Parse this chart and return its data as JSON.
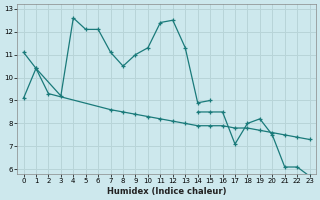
{
  "xlabel": "Humidex (Indice chaleur)",
  "bg_color": "#cde8ed",
  "grid_color": "#b8d4d8",
  "line_color": "#1a7a7a",
  "xlim": [
    -0.5,
    23.5
  ],
  "ylim": [
    5.8,
    13.2
  ],
  "xticks": [
    0,
    1,
    2,
    3,
    4,
    5,
    6,
    7,
    8,
    9,
    10,
    11,
    12,
    13,
    14,
    15,
    16,
    17,
    18,
    19,
    20,
    21,
    22,
    23
  ],
  "yticks": [
    6,
    7,
    8,
    9,
    10,
    11,
    12,
    13
  ],
  "series1": {
    "x": [
      0,
      1,
      3,
      4,
      5,
      6,
      7,
      8,
      9,
      10,
      11,
      12,
      13,
      14,
      15
    ],
    "y": [
      11.1,
      10.4,
      9.2,
      12.6,
      12.1,
      12.1,
      11.1,
      10.5,
      11.0,
      11.3,
      12.4,
      12.5,
      11.3,
      8.9,
      9.0
    ]
  },
  "series2": {
    "x": [
      0,
      1,
      2,
      7,
      8,
      9,
      10,
      11,
      12,
      13,
      14,
      15,
      16,
      17,
      18,
      19,
      20,
      21,
      22,
      23
    ],
    "y": [
      9.1,
      10.4,
      9.3,
      8.6,
      8.5,
      8.4,
      8.3,
      8.2,
      8.1,
      8.0,
      7.9,
      7.9,
      7.9,
      7.8,
      7.8,
      7.7,
      7.6,
      7.5,
      7.4,
      7.3
    ]
  },
  "series3": {
    "x": [
      14,
      15,
      16,
      17,
      18,
      19,
      20,
      21,
      22,
      23
    ],
    "y": [
      8.5,
      8.5,
      8.5,
      7.1,
      8.0,
      8.2,
      7.5,
      6.1,
      6.1,
      5.7
    ]
  }
}
